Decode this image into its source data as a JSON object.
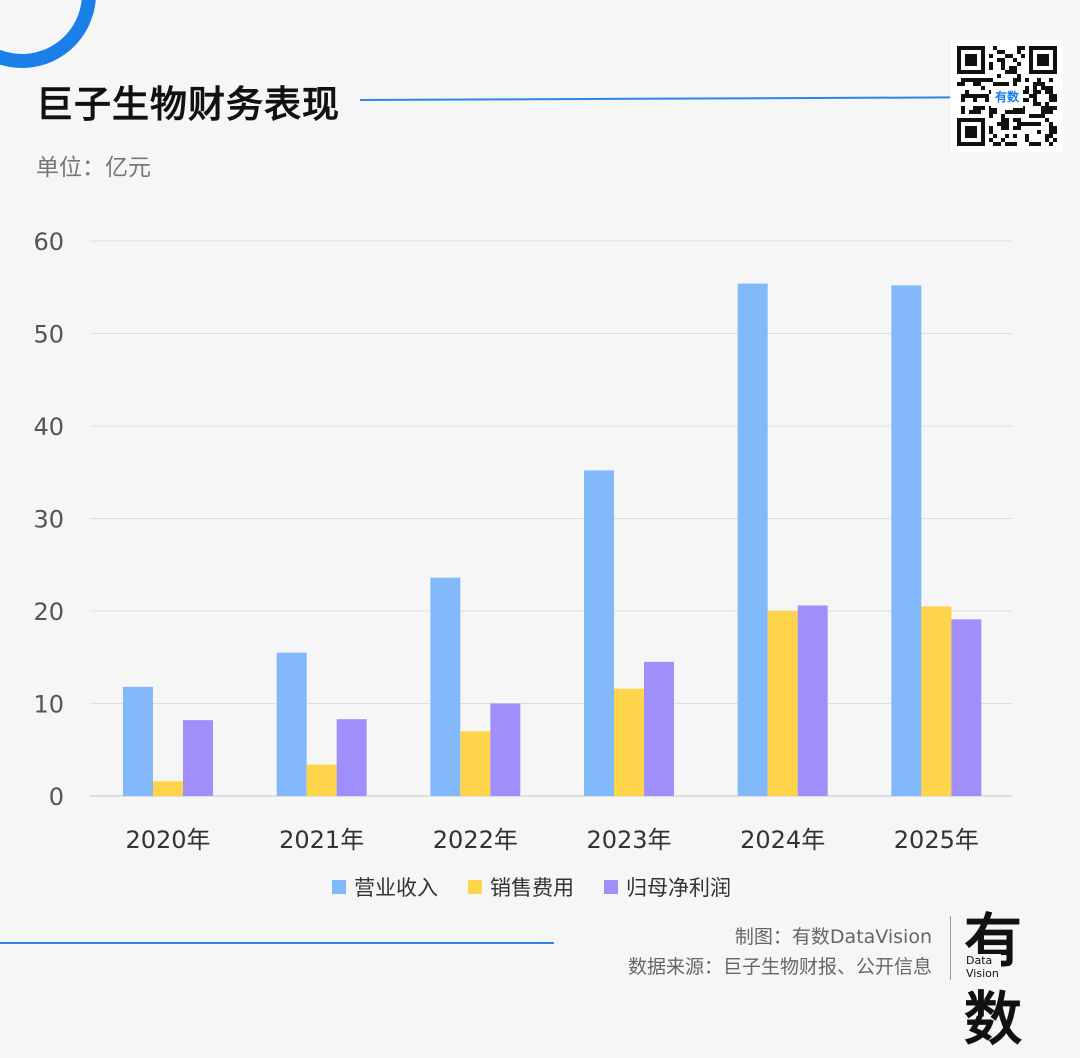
{
  "header": {
    "title": "巨子生物财务表现",
    "unit": "单位：亿元"
  },
  "qr": {
    "label": "有数"
  },
  "footer": {
    "made_by": "制图：有数DataVision",
    "source": "数据来源：巨子生物财报、公开信息",
    "brand_big": "有数",
    "brand_small_1": "Data",
    "brand_small_2": "Vision"
  },
  "colors": {
    "accent": "#1a7fe8",
    "revenue": "#82b9fb",
    "sales_expense": "#fed44a",
    "net_profit": "#a08ffb"
  },
  "chart_data": {
    "type": "bar",
    "categories": [
      "2020年",
      "2021年",
      "2022年",
      "2023年",
      "2024年",
      "2025年"
    ],
    "series": [
      {
        "name": "营业收入",
        "values": [
          11.8,
          15.5,
          23.6,
          35.2,
          55.4,
          55.2
        ]
      },
      {
        "name": "销售费用",
        "values": [
          1.6,
          3.4,
          7.0,
          11.6,
          20.0,
          20.5
        ]
      },
      {
        "name": "归母净利润",
        "values": [
          8.2,
          8.3,
          10.0,
          14.5,
          20.6,
          19.1
        ]
      }
    ],
    "yticks": [
      0,
      10,
      20,
      30,
      40,
      50,
      60
    ],
    "ylim": [
      0,
      60
    ],
    "grid": true,
    "legend": "bottom"
  }
}
